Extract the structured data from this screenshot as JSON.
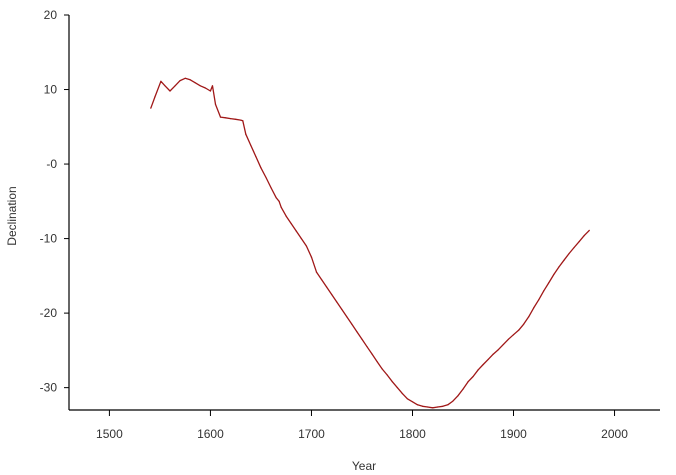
{
  "chart_data": {
    "type": "line",
    "title": "",
    "xlabel": "Year",
    "ylabel": "Declination",
    "xlim": [
      1460,
      2045
    ],
    "ylim": [
      -33,
      20
    ],
    "x_ticks": [
      1500,
      1600,
      1700,
      1800,
      1900,
      2000
    ],
    "x_tick_labels": [
      "1500",
      "1600",
      "1700",
      "1800",
      "1900",
      "2000"
    ],
    "y_ticks": [
      20,
      10,
      0,
      -10,
      -20,
      -30
    ],
    "y_tick_labels": [
      "20",
      "10",
      "-0",
      "-10",
      "-20",
      "-30"
    ],
    "grid": false,
    "legend": "none",
    "line_color": "#a01818",
    "series": [
      {
        "x": [
          1541,
          1545,
          1551,
          1555,
          1560,
          1565,
          1570,
          1575,
          1580,
          1585,
          1590,
          1595,
          1600,
          1602,
          1605,
          1610,
          1615,
          1620,
          1625,
          1630,
          1632,
          1635,
          1640,
          1645,
          1650,
          1655,
          1660,
          1665,
          1668,
          1670,
          1675,
          1680,
          1685,
          1690,
          1695,
          1700,
          1705,
          1710,
          1715,
          1720,
          1725,
          1730,
          1735,
          1740,
          1745,
          1750,
          1755,
          1760,
          1765,
          1770,
          1775,
          1780,
          1785,
          1790,
          1795,
          1800,
          1805,
          1810,
          1815,
          1820,
          1825,
          1830,
          1835,
          1840,
          1845,
          1850,
          1855,
          1860,
          1865,
          1870,
          1875,
          1880,
          1885,
          1890,
          1895,
          1900,
          1905,
          1910,
          1915,
          1920,
          1925,
          1930,
          1935,
          1940,
          1945,
          1950,
          1955,
          1960,
          1965,
          1970,
          1975
        ],
        "y": [
          7.5,
          9.0,
          11.1,
          10.5,
          9.8,
          10.5,
          11.2,
          11.5,
          11.3,
          10.9,
          10.5,
          10.2,
          9.8,
          10.5,
          8.0,
          6.3,
          6.2,
          6.1,
          6.0,
          5.9,
          5.8,
          4.0,
          2.5,
          1.0,
          -0.5,
          -1.8,
          -3.2,
          -4.5,
          -5.0,
          -5.8,
          -7.0,
          -8.0,
          -9.0,
          -10.0,
          -11.0,
          -12.5,
          -14.5,
          -15.5,
          -16.5,
          -17.5,
          -18.5,
          -19.5,
          -20.5,
          -21.5,
          -22.5,
          -23.5,
          -24.5,
          -25.5,
          -26.5,
          -27.5,
          -28.3,
          -29.2,
          -30.0,
          -30.8,
          -31.5,
          -31.9,
          -32.3,
          -32.5,
          -32.6,
          -32.7,
          -32.6,
          -32.5,
          -32.3,
          -31.8,
          -31.1,
          -30.2,
          -29.2,
          -28.5,
          -27.6,
          -26.9,
          -26.2,
          -25.5,
          -24.9,
          -24.2,
          -23.5,
          -22.9,
          -22.3,
          -21.5,
          -20.5,
          -19.3,
          -18.2,
          -17.0,
          -15.9,
          -14.8,
          -13.8,
          -12.9,
          -12.0,
          -11.2,
          -10.4,
          -9.6,
          -8.9
        ]
      }
    ]
  }
}
